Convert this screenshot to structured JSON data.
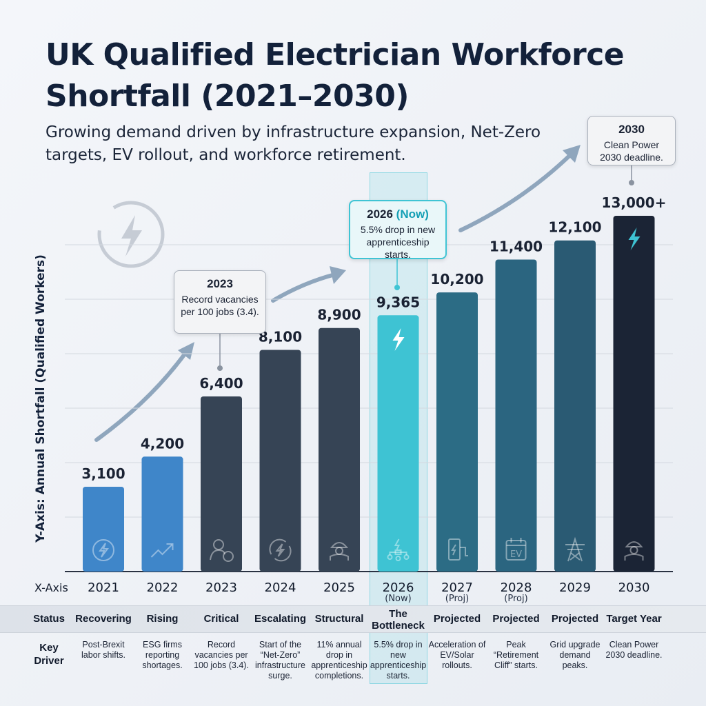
{
  "title": "UK Qualified Electrician Workforce Shortfall (2021–2030)",
  "subtitle": "Growing demand driven by infrastructure expansion, Net-Zero targets, EV rollout, and workforce retirement.",
  "chart_data": {
    "type": "bar",
    "title": "UK Qualified Electrician Workforce Shortfall (2021–2030)",
    "ylabel": "Y-Axis: Annual Shortfall  (Qualified Workers)",
    "xlabel": "X-Axis",
    "categories": [
      "2021",
      "2022",
      "2023",
      "2024",
      "2025",
      "2026",
      "2027",
      "2028",
      "2029",
      "2030"
    ],
    "category_sublabels": [
      "",
      "",
      "",
      "",
      "",
      "(Now)",
      "(Proj)",
      "(Proj)",
      "",
      ""
    ],
    "values": [
      3100,
      4200,
      6400,
      8100,
      8900,
      9365,
      10200,
      11400,
      12100,
      13000
    ],
    "value_labels": [
      "3,100",
      "4,200",
      "6,400",
      "8,100",
      "8,900",
      "9,365",
      "10,200",
      "11,400",
      "12,100",
      "13,000+"
    ],
    "ylim": [
      0,
      13000
    ],
    "grid": true,
    "bar_colors": [
      "#3f86c9",
      "#3f86c9",
      "#364455",
      "#364455",
      "#364455",
      "#3ec3d3",
      "#2c6c85",
      "#2b6580",
      "#2a5a73",
      "#1b2435"
    ],
    "highlight": "2026"
  },
  "callouts": {
    "c2023": {
      "title": "2023",
      "text": "Record vacancies per 100 jobs (3.4)."
    },
    "c2026": {
      "title_year": "2026",
      "title_accent": "(Now)",
      "text": "5.5% drop in new apprenticeship starts."
    },
    "c2030": {
      "title": "2030",
      "text": "Clean Power 2030 deadline."
    }
  },
  "table": {
    "status_header": "Status",
    "driver_header": "Key Driver",
    "status": [
      "Recovering",
      "Rising",
      "Critical",
      "Escalating",
      "Structural",
      "The Bottleneck",
      "Projected",
      "Projected",
      "Projected",
      "Target Year"
    ],
    "drivers": [
      "Post-Brexit labor shifts.",
      "ESG firms reporting shortages.",
      "Record vacancies per 100 jobs (3.4).",
      "Start of the “Net-Zero” infrastructure surge.",
      "11% annual drop in apprenticeship completions.",
      "5.5% drop in new apprenticeship starts.",
      "Acceleration of EV/Solar rollouts.",
      "Peak “Retirement Cliff” starts.",
      "Grid upgrade demand peaks.",
      "Clean Power 2030 deadline."
    ]
  },
  "icons": [
    "lightning-circle-icon",
    "trend-up-icon",
    "person-coin-icon",
    "lightning-cycle-icon",
    "worker-helmet-icon",
    "network-icon",
    "ev-charger-icon",
    "ev-calendar-icon",
    "pylon-icon",
    "engineer-icon"
  ],
  "ev_icon_text": "EV"
}
